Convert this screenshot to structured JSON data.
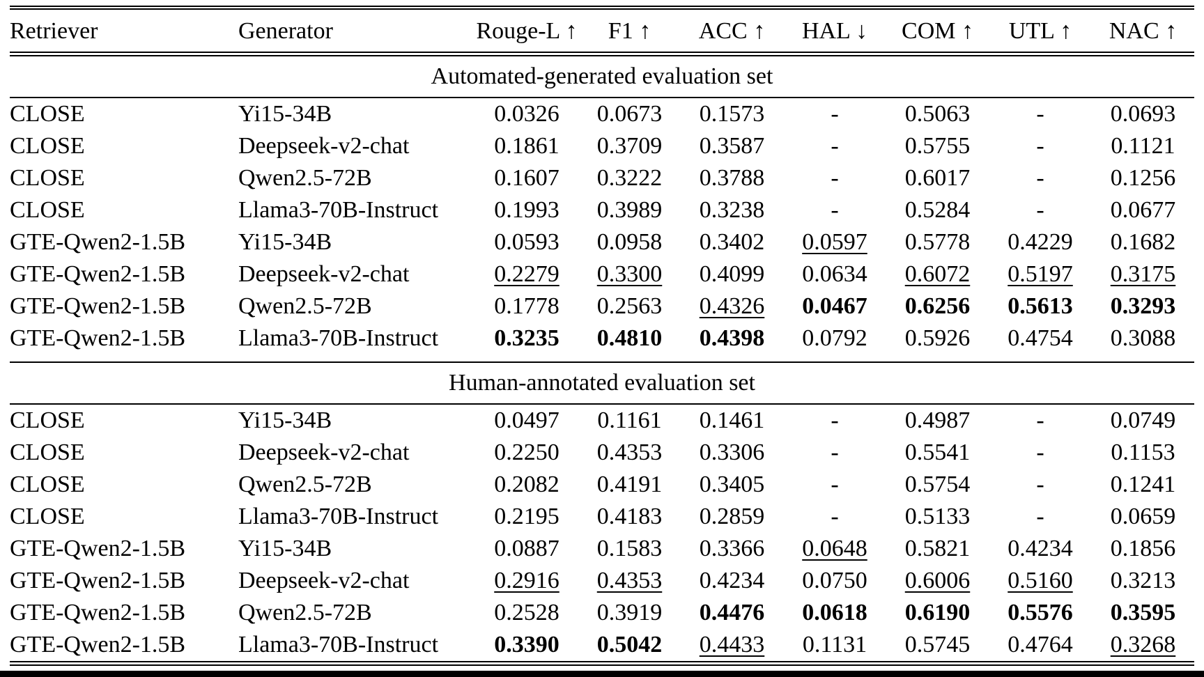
{
  "page": {
    "background_color": "#ffffff",
    "text_color": "#000000",
    "rule_color": "#000000"
  },
  "table": {
    "columns": [
      {
        "label": "Retriever",
        "align": "left"
      },
      {
        "label": "Generator",
        "align": "left"
      },
      {
        "label": "Rouge-L ↑",
        "align": "center"
      },
      {
        "label": "F1 ↑",
        "align": "center"
      },
      {
        "label": "ACC ↑",
        "align": "center"
      },
      {
        "label": "HAL ↓",
        "align": "center"
      },
      {
        "label": "COM ↑",
        "align": "center"
      },
      {
        "label": "UTL ↑",
        "align": "center"
      },
      {
        "label": "NAC ↑",
        "align": "center"
      }
    ],
    "sections": [
      {
        "title": "Automated-generated evaluation set",
        "rows": [
          {
            "retriever": "CLOSE",
            "generator": "Yi15-34B",
            "metrics": [
              {
                "v": "0.0326",
                "s": "p"
              },
              {
                "v": "0.0673",
                "s": "p"
              },
              {
                "v": "0.1573",
                "s": "p"
              },
              {
                "v": "-",
                "s": "p"
              },
              {
                "v": "0.5063",
                "s": "p"
              },
              {
                "v": "-",
                "s": "p"
              },
              {
                "v": "0.0693",
                "s": "p"
              }
            ]
          },
          {
            "retriever": "CLOSE",
            "generator": "Deepseek-v2-chat",
            "metrics": [
              {
                "v": "0.1861",
                "s": "p"
              },
              {
                "v": "0.3709",
                "s": "p"
              },
              {
                "v": "0.3587",
                "s": "p"
              },
              {
                "v": "-",
                "s": "p"
              },
              {
                "v": "0.5755",
                "s": "p"
              },
              {
                "v": "-",
                "s": "p"
              },
              {
                "v": "0.1121",
                "s": "p"
              }
            ]
          },
          {
            "retriever": "CLOSE",
            "generator": "Qwen2.5-72B",
            "metrics": [
              {
                "v": "0.1607",
                "s": "p"
              },
              {
                "v": "0.3222",
                "s": "p"
              },
              {
                "v": "0.3788",
                "s": "p"
              },
              {
                "v": "-",
                "s": "p"
              },
              {
                "v": "0.6017",
                "s": "p"
              },
              {
                "v": "-",
                "s": "p"
              },
              {
                "v": "0.1256",
                "s": "p"
              }
            ]
          },
          {
            "retriever": "CLOSE",
            "generator": "Llama3-70B-Instruct",
            "metrics": [
              {
                "v": "0.1993",
                "s": "p"
              },
              {
                "v": "0.3989",
                "s": "p"
              },
              {
                "v": "0.3238",
                "s": "p"
              },
              {
                "v": "-",
                "s": "p"
              },
              {
                "v": "0.5284",
                "s": "p"
              },
              {
                "v": "-",
                "s": "p"
              },
              {
                "v": "0.0677",
                "s": "p"
              }
            ]
          },
          {
            "retriever": "GTE-Qwen2-1.5B",
            "generator": "Yi15-34B",
            "metrics": [
              {
                "v": "0.0593",
                "s": "p"
              },
              {
                "v": "0.0958",
                "s": "p"
              },
              {
                "v": "0.3402",
                "s": "p"
              },
              {
                "v": "0.0597",
                "s": "u"
              },
              {
                "v": "0.5778",
                "s": "p"
              },
              {
                "v": "0.4229",
                "s": "p"
              },
              {
                "v": "0.1682",
                "s": "p"
              }
            ]
          },
          {
            "retriever": "GTE-Qwen2-1.5B",
            "generator": "Deepseek-v2-chat",
            "metrics": [
              {
                "v": "0.2279",
                "s": "u"
              },
              {
                "v": "0.3300",
                "s": "u"
              },
              {
                "v": "0.4099",
                "s": "p"
              },
              {
                "v": "0.0634",
                "s": "p"
              },
              {
                "v": "0.6072",
                "s": "u"
              },
              {
                "v": "0.5197",
                "s": "u"
              },
              {
                "v": "0.3175",
                "s": "u"
              }
            ]
          },
          {
            "retriever": "GTE-Qwen2-1.5B",
            "generator": "Qwen2.5-72B",
            "metrics": [
              {
                "v": "0.1778",
                "s": "p"
              },
              {
                "v": "0.2563",
                "s": "p"
              },
              {
                "v": "0.4326",
                "s": "u"
              },
              {
                "v": "0.0467",
                "s": "b"
              },
              {
                "v": "0.6256",
                "s": "b"
              },
              {
                "v": "0.5613",
                "s": "b"
              },
              {
                "v": "0.3293",
                "s": "b"
              }
            ]
          },
          {
            "retriever": "GTE-Qwen2-1.5B",
            "generator": "Llama3-70B-Instruct",
            "metrics": [
              {
                "v": "0.3235",
                "s": "b"
              },
              {
                "v": "0.4810",
                "s": "b"
              },
              {
                "v": "0.4398",
                "s": "b"
              },
              {
                "v": "0.0792",
                "s": "p"
              },
              {
                "v": "0.5926",
                "s": "p"
              },
              {
                "v": "0.4754",
                "s": "p"
              },
              {
                "v": "0.3088",
                "s": "p"
              }
            ]
          }
        ]
      },
      {
        "title": "Human-annotated evaluation set",
        "rows": [
          {
            "retriever": "CLOSE",
            "generator": "Yi15-34B",
            "metrics": [
              {
                "v": "0.0497",
                "s": "p"
              },
              {
                "v": "0.1161",
                "s": "p"
              },
              {
                "v": "0.1461",
                "s": "p"
              },
              {
                "v": "-",
                "s": "p"
              },
              {
                "v": "0.4987",
                "s": "p"
              },
              {
                "v": "-",
                "s": "p"
              },
              {
                "v": "0.0749",
                "s": "p"
              }
            ]
          },
          {
            "retriever": "CLOSE",
            "generator": "Deepseek-v2-chat",
            "metrics": [
              {
                "v": "0.2250",
                "s": "p"
              },
              {
                "v": "0.4353",
                "s": "p"
              },
              {
                "v": "0.3306",
                "s": "p"
              },
              {
                "v": "-",
                "s": "p"
              },
              {
                "v": "0.5541",
                "s": "p"
              },
              {
                "v": "-",
                "s": "p"
              },
              {
                "v": "0.1153",
                "s": "p"
              }
            ]
          },
          {
            "retriever": "CLOSE",
            "generator": "Qwen2.5-72B",
            "metrics": [
              {
                "v": "0.2082",
                "s": "p"
              },
              {
                "v": "0.4191",
                "s": "p"
              },
              {
                "v": "0.3405",
                "s": "p"
              },
              {
                "v": "-",
                "s": "p"
              },
              {
                "v": "0.5754",
                "s": "p"
              },
              {
                "v": "-",
                "s": "p"
              },
              {
                "v": "0.1241",
                "s": "p"
              }
            ]
          },
          {
            "retriever": "CLOSE",
            "generator": "Llama3-70B-Instruct",
            "metrics": [
              {
                "v": "0.2195",
                "s": "p"
              },
              {
                "v": "0.4183",
                "s": "p"
              },
              {
                "v": "0.2859",
                "s": "p"
              },
              {
                "v": "-",
                "s": "p"
              },
              {
                "v": "0.5133",
                "s": "p"
              },
              {
                "v": "-",
                "s": "p"
              },
              {
                "v": "0.0659",
                "s": "p"
              }
            ]
          },
          {
            "retriever": "GTE-Qwen2-1.5B",
            "generator": "Yi15-34B",
            "metrics": [
              {
                "v": "0.0887",
                "s": "p"
              },
              {
                "v": "0.1583",
                "s": "p"
              },
              {
                "v": "0.3366",
                "s": "p"
              },
              {
                "v": "0.0648",
                "s": "u"
              },
              {
                "v": "0.5821",
                "s": "p"
              },
              {
                "v": "0.4234",
                "s": "p"
              },
              {
                "v": "0.1856",
                "s": "p"
              }
            ]
          },
          {
            "retriever": "GTE-Qwen2-1.5B",
            "generator": "Deepseek-v2-chat",
            "metrics": [
              {
                "v": "0.2916",
                "s": "u"
              },
              {
                "v": "0.4353",
                "s": "u"
              },
              {
                "v": "0.4234",
                "s": "p"
              },
              {
                "v": "0.0750",
                "s": "p"
              },
              {
                "v": "0.6006",
                "s": "u"
              },
              {
                "v": "0.5160",
                "s": "u"
              },
              {
                "v": "0.3213",
                "s": "p"
              }
            ]
          },
          {
            "retriever": "GTE-Qwen2-1.5B",
            "generator": "Qwen2.5-72B",
            "metrics": [
              {
                "v": "0.2528",
                "s": "p"
              },
              {
                "v": "0.3919",
                "s": "p"
              },
              {
                "v": "0.4476",
                "s": "b"
              },
              {
                "v": "0.0618",
                "s": "b"
              },
              {
                "v": "0.6190",
                "s": "b"
              },
              {
                "v": "0.5576",
                "s": "b"
              },
              {
                "v": "0.3595",
                "s": "b"
              }
            ]
          },
          {
            "retriever": "GTE-Qwen2-1.5B",
            "generator": "Llama3-70B-Instruct",
            "metrics": [
              {
                "v": "0.3390",
                "s": "b"
              },
              {
                "v": "0.5042",
                "s": "b"
              },
              {
                "v": "0.4433",
                "s": "u"
              },
              {
                "v": "0.1131",
                "s": "p"
              },
              {
                "v": "0.5745",
                "s": "p"
              },
              {
                "v": "0.4764",
                "s": "p"
              },
              {
                "v": "0.3268",
                "s": "u"
              }
            ]
          }
        ]
      }
    ]
  }
}
